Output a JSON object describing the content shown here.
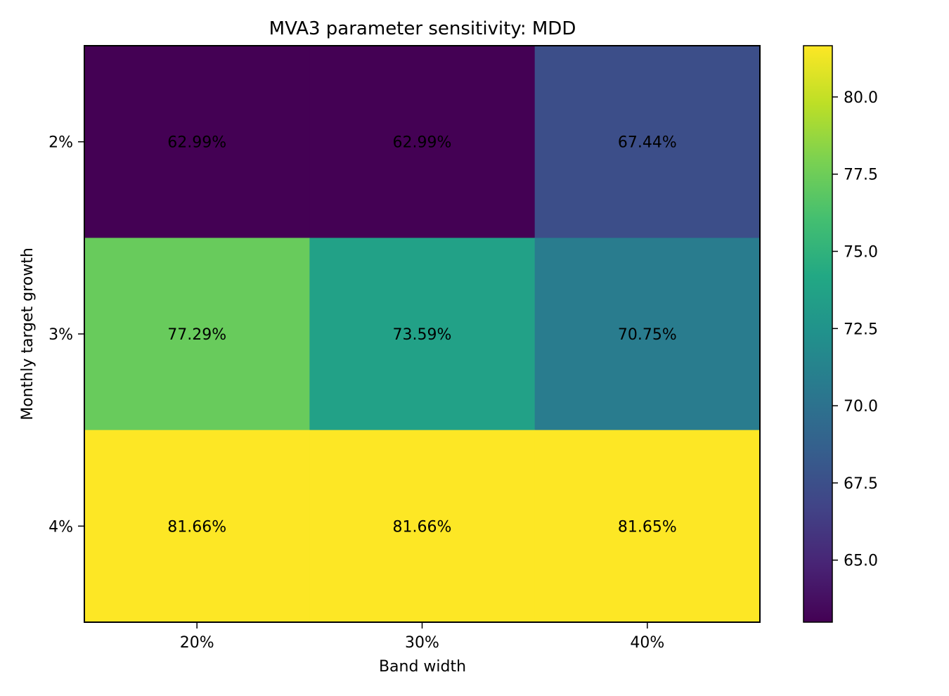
{
  "chart_data": {
    "type": "heatmap",
    "title": "MVA3 parameter sensitivity: MDD",
    "xlabel": "Band width",
    "ylabel": "Monthly target growth",
    "x_categories": [
      "20%",
      "30%",
      "40%"
    ],
    "y_categories": [
      "2%",
      "3%",
      "4%"
    ],
    "values": [
      [
        62.99,
        62.99,
        67.44
      ],
      [
        77.29,
        73.59,
        70.75
      ],
      [
        81.66,
        81.66,
        81.65
      ]
    ],
    "cell_labels": [
      [
        "62.99%",
        "62.99%",
        "67.44%"
      ],
      [
        "77.29%",
        "73.59%",
        "70.75%"
      ],
      [
        "81.66%",
        "81.66%",
        "81.65%"
      ]
    ],
    "colormap": "viridis",
    "colorbar": {
      "range": [
        62.99,
        81.66
      ],
      "ticks": [
        65.0,
        67.5,
        70.0,
        72.5,
        75.0,
        77.5,
        80.0
      ],
      "tick_labels": [
        "65.0",
        "67.5",
        "70.0",
        "72.5",
        "75.0",
        "77.5",
        "80.0"
      ]
    }
  }
}
